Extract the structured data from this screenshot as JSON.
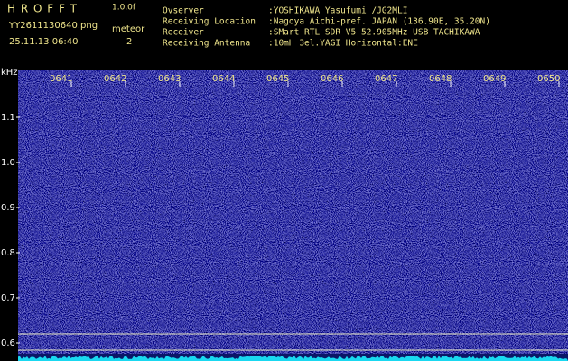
{
  "header": {
    "app_name": "H R O F F T",
    "version": "1.0.0f",
    "file_name": "YY2611130640.png",
    "meteor_label": "meteor",
    "timestamp": "25.11.13 06:40",
    "meteor_count": "2"
  },
  "station_info": [
    {
      "label": "Ovserver",
      "value": ":YOSHIKAWA Yasufumi /JG2MLI"
    },
    {
      "label": "Receiving Location",
      "value": ":Nagoya Aichi-pref. JAPAN (136.90E, 35.20N)"
    },
    {
      "label": "Receiver",
      "value": ":SMart RTL-SDR V5 52.905MHz USB TACHIKAWA"
    },
    {
      "label": "Receiving Antenna",
      "value": ":10mH 3el.YAGI Horizontal:ENE"
    }
  ],
  "spectrogram": {
    "freq_unit": "kHz",
    "time_labels": [
      "0641",
      "0642",
      "0643",
      "0644",
      "0645",
      "0646",
      "0647",
      "0648",
      "0649",
      "0650"
    ],
    "freq_labels": [
      "1.1",
      "1.0",
      "0.9",
      "0.8",
      "0.7",
      "0.6"
    ]
  }
}
